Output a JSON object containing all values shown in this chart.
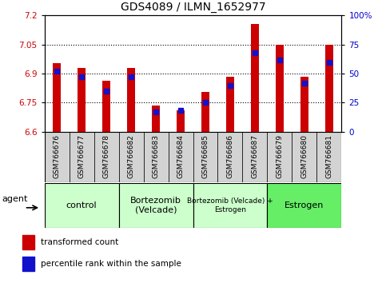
{
  "title": "GDS4089 / ILMN_1652977",
  "samples": [
    "GSM766676",
    "GSM766677",
    "GSM766678",
    "GSM766682",
    "GSM766683",
    "GSM766684",
    "GSM766685",
    "GSM766686",
    "GSM766687",
    "GSM766679",
    "GSM766680",
    "GSM766681"
  ],
  "transformed_count": [
    6.955,
    6.93,
    6.865,
    6.93,
    6.735,
    6.71,
    6.805,
    6.885,
    7.155,
    7.05,
    6.885,
    7.05
  ],
  "percentile_rank": [
    52,
    47,
    35,
    47,
    17,
    18,
    25,
    40,
    68,
    62,
    42,
    60
  ],
  "ylim_left": [
    6.6,
    7.2
  ],
  "ylim_right": [
    0,
    100
  ],
  "yticks_left": [
    6.6,
    6.75,
    6.9,
    7.05,
    7.2
  ],
  "ytick_labels_left": [
    "6.6",
    "6.75",
    "6.9",
    "7.05",
    "7.2"
  ],
  "yticks_right": [
    0,
    25,
    50,
    75,
    100
  ],
  "ytick_labels_right": [
    "0",
    "25",
    "50",
    "75",
    "100%"
  ],
  "grid_lines": [
    6.75,
    6.9,
    7.05
  ],
  "bar_color": "#cc0000",
  "marker_color": "#1111cc",
  "bar_width": 0.35,
  "ybase": 6.6,
  "group_configs": [
    {
      "label": "control",
      "indices": [
        0,
        1,
        2
      ],
      "color": "#ccffcc"
    },
    {
      "label": "Bortezomib\n(Velcade)",
      "indices": [
        3,
        4,
        5
      ],
      "color": "#ccffcc"
    },
    {
      "label": "Bortezomib (Velcade) +\nEstrogen",
      "indices": [
        6,
        7,
        8
      ],
      "color": "#ccffcc"
    },
    {
      "label": "Estrogen",
      "indices": [
        9,
        10,
        11
      ],
      "color": "#66ee66"
    }
  ],
  "agent_label": "agent",
  "legend_transformed": "transformed count",
  "legend_percentile": "percentile rank within the sample",
  "xticklabel_bg": "#d3d3d3",
  "title_fontsize": 10,
  "tick_fontsize": 7.5,
  "bar_label_fontsize": 7,
  "group_fontsize": 8,
  "group_fontsize_small": 6.5
}
